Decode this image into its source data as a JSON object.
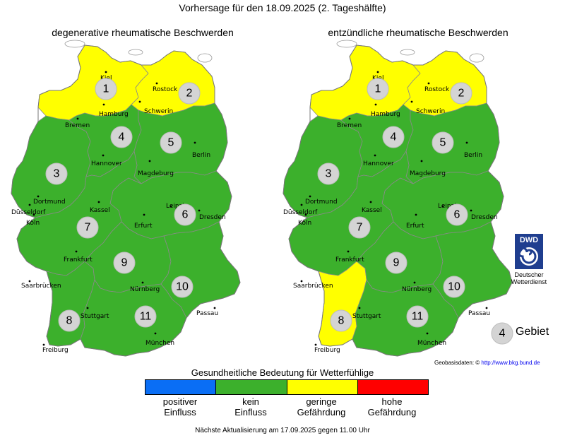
{
  "header": {
    "title": "Vorhersage für den 18.09.2025 (2. Tageshälfte)"
  },
  "maps": [
    {
      "title": "degenerative rheumatische Beschwerden",
      "regions": [
        {
          "num": "1",
          "status": "geringe Gefährdung"
        },
        {
          "num": "2",
          "status": "geringe Gefährdung"
        },
        {
          "num": "3",
          "status": "kein Einfluss"
        },
        {
          "num": "4",
          "status": "kein Einfluss"
        },
        {
          "num": "5",
          "status": "kein Einfluss"
        },
        {
          "num": "6",
          "status": "kein Einfluss"
        },
        {
          "num": "7",
          "status": "kein Einfluss"
        },
        {
          "num": "8",
          "status": "kein Einfluss"
        },
        {
          "num": "9",
          "status": "kein Einfluss"
        },
        {
          "num": "10",
          "status": "kein Einfluss"
        },
        {
          "num": "11",
          "status": "kein Einfluss"
        }
      ]
    },
    {
      "title": "entzündliche rheumatische Beschwerden",
      "regions": [
        {
          "num": "1",
          "status": "geringe Gefährdung"
        },
        {
          "num": "2",
          "status": "geringe Gefährdung"
        },
        {
          "num": "3",
          "status": "kein Einfluss"
        },
        {
          "num": "4",
          "status": "kein Einfluss"
        },
        {
          "num": "5",
          "status": "kein Einfluss"
        },
        {
          "num": "6",
          "status": "kein Einfluss"
        },
        {
          "num": "7",
          "status": "kein Einfluss"
        },
        {
          "num": "8",
          "status": "geringe Gefährdung"
        },
        {
          "num": "9",
          "status": "kein Einfluss"
        },
        {
          "num": "10",
          "status": "kein Einfluss"
        },
        {
          "num": "11",
          "status": "kein Einfluss"
        }
      ]
    }
  ],
  "cities": [
    "Kiel",
    "Rostock",
    "Hamburg",
    "Schwerin",
    "Bremen",
    "Hannover",
    "Berlin",
    "Magdeburg",
    "Dortmund",
    "Düsseldorf",
    "Köln",
    "Kassel",
    "Leipzig",
    "Dresden",
    "Erfurt",
    "Frankfurt",
    "Saarbrücken",
    "Nürnberg",
    "Stuttgart",
    "Passau",
    "München",
    "Freiburg"
  ],
  "legend": {
    "title": "Gesundheitliche Bedeutung für Wetterfühlige",
    "items": [
      {
        "label_line1": "positiver",
        "label_line2": "Einfluss",
        "color": "#0a6ef5"
      },
      {
        "label_line1": "kein",
        "label_line2": "Einfluss",
        "color": "#3cb02c"
      },
      {
        "label_line1": "geringe",
        "label_line2": "Gefährdung",
        "color": "#ffff00"
      },
      {
        "label_line1": "hohe",
        "label_line2": "Gefährdung",
        "color": "#ff0000"
      }
    ]
  },
  "colors": {
    "kein_einfluss": "#3cb02c",
    "geringe_gefaehrdung": "#ffff00",
    "border": "#8a8a8a"
  },
  "key": {
    "number": "4",
    "label": "Gebiet"
  },
  "logo": {
    "text": "DWD",
    "caption_line1": "Deutscher",
    "caption_line2": "Wetterdienst",
    "icon": "dwd-spiral-icon"
  },
  "attribution": {
    "prefix": "Geobasisdaten: ©",
    "url": "http://www.bkg.bund.de"
  },
  "footer": {
    "update_note": "Nächste Aktualisierung am 17.09.2025 gegen 11.00 Uhr"
  }
}
